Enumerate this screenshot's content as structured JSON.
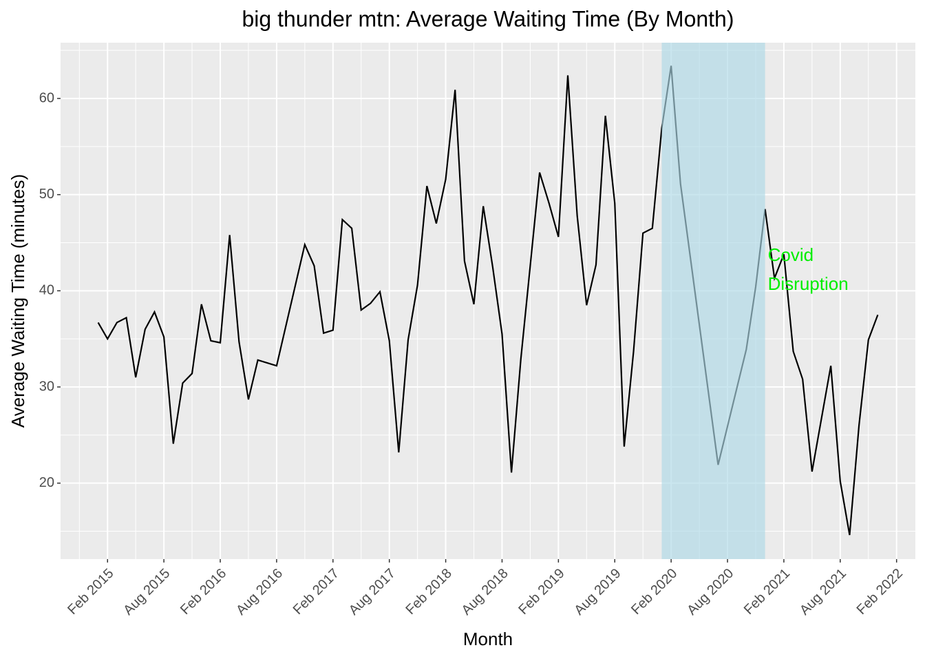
{
  "chart_data": {
    "type": "line",
    "title": "big thunder mtn: Average Waiting Time (By Month)",
    "x_label": "Month",
    "y_label": "Average Waiting Time (minutes)",
    "x": [
      "2015-01",
      "2015-02",
      "2015-03",
      "2015-04",
      "2015-05",
      "2015-06",
      "2015-07",
      "2015-08",
      "2015-09",
      "2015-10",
      "2015-11",
      "2015-12",
      "2016-01",
      "2016-02",
      "2016-03",
      "2016-04",
      "2016-05",
      "2016-06",
      "2016-07",
      "2016-08",
      "2016-11",
      "2016-12",
      "2017-01",
      "2017-02",
      "2017-03",
      "2017-04",
      "2017-05",
      "2017-06",
      "2017-07",
      "2017-08",
      "2017-09",
      "2017-10",
      "2017-11",
      "2017-12",
      "2018-01",
      "2018-02",
      "2018-03",
      "2018-04",
      "2018-05",
      "2018-06",
      "2018-07",
      "2018-08",
      "2018-09",
      "2018-10",
      "2018-12",
      "2019-01",
      "2019-02",
      "2019-03",
      "2019-04",
      "2019-05",
      "2019-06",
      "2019-07",
      "2019-08",
      "2019-09",
      "2019-10",
      "2019-11",
      "2019-12",
      "2020-01",
      "2020-02",
      "2020-03",
      "2020-07",
      "2020-10",
      "2020-11",
      "2020-12",
      "2021-01",
      "2021-02",
      "2021-03",
      "2021-04",
      "2021-05",
      "2021-07",
      "2021-08",
      "2021-09",
      "2021-10",
      "2021-11",
      "2021-12"
    ],
    "series": [
      {
        "color": "#000000",
        "values": [
          36.7,
          35.0,
          36.7,
          37.2,
          31.0,
          36.0,
          37.8,
          35.2,
          24.1,
          30.4,
          31.4,
          38.6,
          34.8,
          34.6,
          45.8,
          34.7,
          28.7,
          32.8,
          32.5,
          32.2,
          44.8,
          42.6,
          35.6,
          35.9,
          47.4,
          46.5,
          38.0,
          38.7,
          39.9,
          34.8,
          23.2,
          34.9,
          40.6,
          50.9,
          47.0,
          51.6,
          60.9,
          43.1,
          38.6,
          48.8,
          42.5,
          35.5,
          21.1,
          32.9,
          52.3,
          49.1,
          45.6,
          62.4,
          47.8,
          38.5,
          42.7,
          58.2,
          49.1,
          23.8,
          33.7,
          46.0,
          46.5,
          56.9,
          63.4,
          51.1,
          21.9,
          33.9,
          40.4,
          48.5,
          41.3,
          43.8,
          33.7,
          30.8,
          21.2,
          32.2,
          20.2,
          14.6,
          26.0,
          34.9,
          37.5
        ]
      }
    ],
    "xlim": [
      "2014-09",
      "2022-04"
    ],
    "xticks": [
      {
        "value": "2015-02",
        "label": "Feb 2015"
      },
      {
        "value": "2015-08",
        "label": "Aug 2015"
      },
      {
        "value": "2016-02",
        "label": "Feb 2016"
      },
      {
        "value": "2016-08",
        "label": "Aug 2016"
      },
      {
        "value": "2017-02",
        "label": "Feb 2017"
      },
      {
        "value": "2017-08",
        "label": "Aug 2017"
      },
      {
        "value": "2018-02",
        "label": "Feb 2018"
      },
      {
        "value": "2018-08",
        "label": "Aug 2018"
      },
      {
        "value": "2019-02",
        "label": "Feb 2019"
      },
      {
        "value": "2019-08",
        "label": "Aug 2019"
      },
      {
        "value": "2020-02",
        "label": "Feb 2020"
      },
      {
        "value": "2020-08",
        "label": "Aug 2020"
      },
      {
        "value": "2021-02",
        "label": "Feb 2021"
      },
      {
        "value": "2021-08",
        "label": "Aug 2021"
      },
      {
        "value": "2022-02",
        "label": "Feb 2022"
      }
    ],
    "ylim": [
      12.1,
      65.8
    ],
    "yticks": [
      20,
      30,
      40,
      50,
      60
    ],
    "grid": true,
    "shade": {
      "x": [
        "2020-01",
        "2020-12"
      ],
      "color": "#add8e6"
    },
    "annotation": {
      "lines": [
        "Covid",
        "Disruption"
      ],
      "color": "#00ee00"
    }
  }
}
